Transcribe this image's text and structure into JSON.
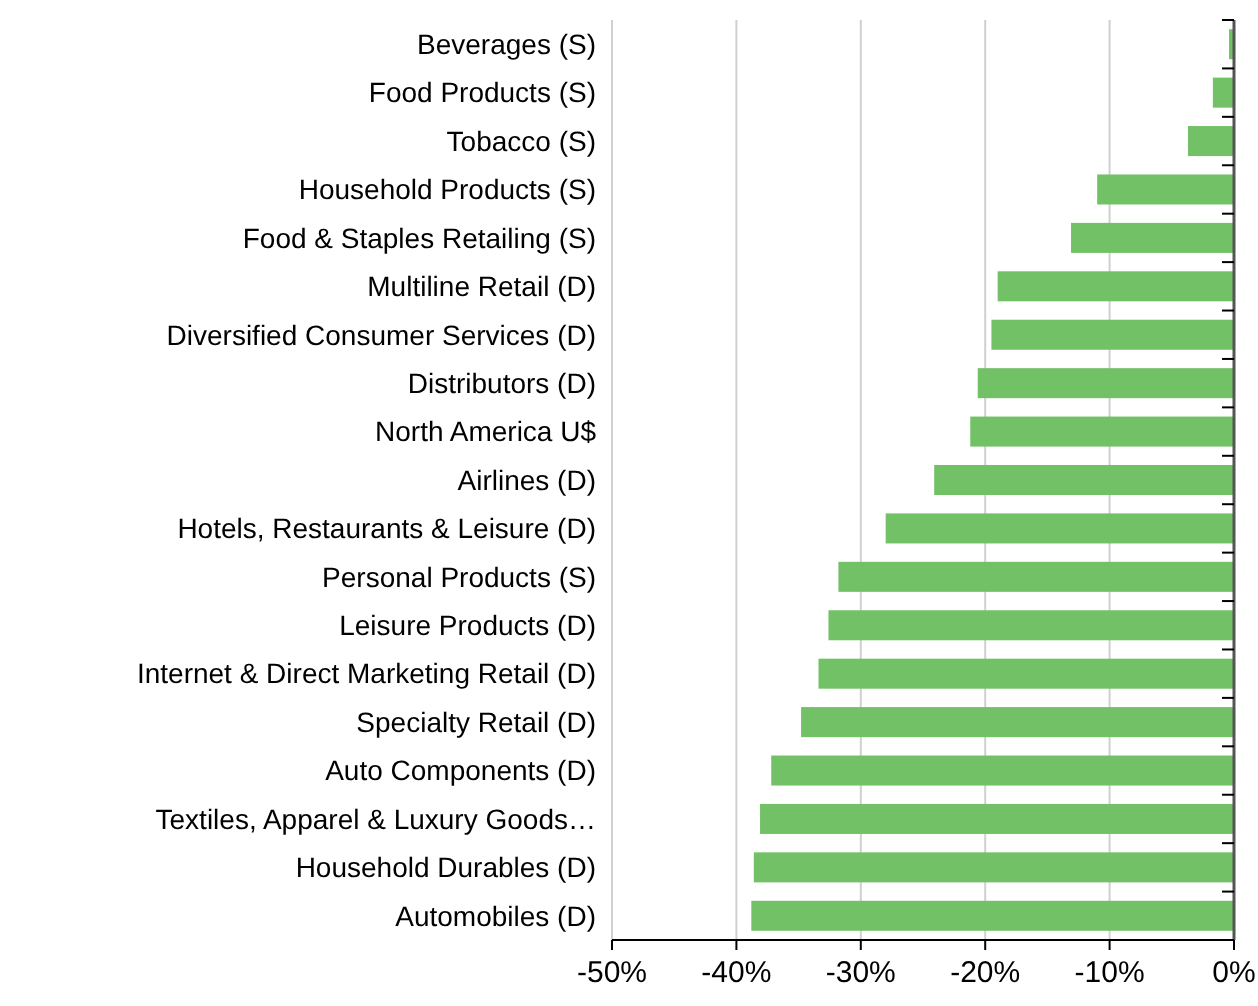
{
  "chart_data": {
    "type": "bar",
    "orientation": "horizontal",
    "categories": [
      "Beverages (S)",
      "Food Products (S)",
      "Tobacco (S)",
      "Household Products (S)",
      "Food & Staples Retailing (S)",
      "Multiline Retail (D)",
      "Diversified Consumer Services (D)",
      "Distributors (D)",
      "North America U$",
      "Airlines (D)",
      "Hotels, Restaurants & Leisure (D)",
      "Personal Products (S)",
      "Leisure Products (D)",
      "Internet & Direct Marketing Retail (D)",
      "Specialty Retail (D)",
      "Auto Components (D)",
      "Textiles, Apparel & Luxury Goods…",
      "Household Durables (D)",
      "Automobiles (D)"
    ],
    "values": [
      -0.4,
      -1.7,
      -3.7,
      -11.0,
      -13.1,
      -19.0,
      -19.5,
      -20.6,
      -21.2,
      -24.1,
      -28.0,
      -31.8,
      -32.6,
      -33.4,
      -34.8,
      -37.2,
      -38.1,
      -38.6,
      -38.8
    ],
    "color": "#73c167",
    "xlim": [
      -50,
      0
    ],
    "xticks": [
      {
        "value": -50,
        "label": "-50%"
      },
      {
        "value": -40,
        "label": "-40%"
      },
      {
        "value": -30,
        "label": "-30%"
      },
      {
        "value": -20,
        "label": "-20%"
      },
      {
        "value": -10,
        "label": "-10%"
      },
      {
        "value": 0,
        "label": "0%"
      }
    ],
    "grid": "x"
  }
}
